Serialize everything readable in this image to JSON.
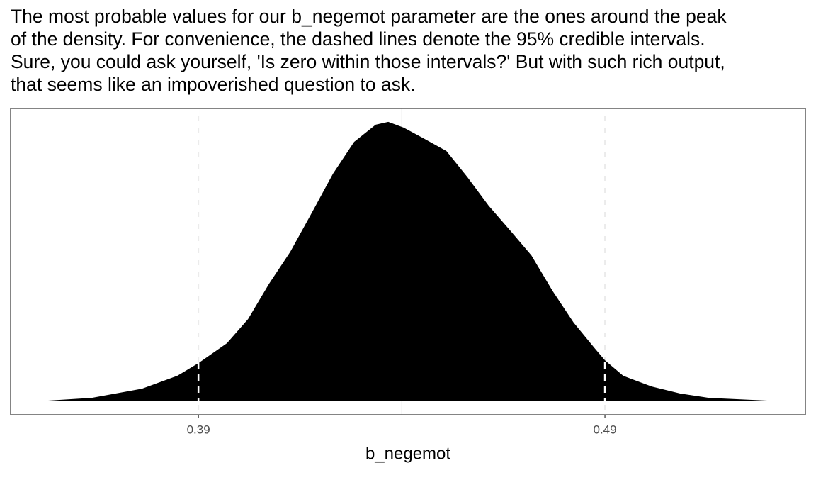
{
  "chart_data": {
    "type": "density",
    "title": [
      "The most probable values for our b_negemot parameter are the ones around the peak",
      "of the density. For convenience, the dashed lines denote the 95% credible intervals.",
      "Sure, you could ask yourself, 'Is zero within those intervals?' But with such rich output,",
      "that seems like an impoverished question to ask."
    ],
    "x_label": "b_negemot",
    "x": [
      0.3527,
      0.3639,
      0.3761,
      0.3848,
      0.39,
      0.397,
      0.4022,
      0.4074,
      0.4126,
      0.4179,
      0.4231,
      0.4283,
      0.4336,
      0.4367,
      0.4405,
      0.4457,
      0.451,
      0.4562,
      0.4614,
      0.4667,
      0.4719,
      0.4771,
      0.4823,
      0.4876,
      0.49,
      0.4945,
      0.5015,
      0.5085,
      0.5154,
      0.5304
    ],
    "y": [
      0,
      0.16,
      0.67,
      1.39,
      2.1,
      3.21,
      4.56,
      6.55,
      8.33,
      10.52,
      12.7,
      14.48,
      15.44,
      15.6,
      15.28,
      14.64,
      13.97,
      12.5,
      10.91,
      9.52,
      8.13,
      6.15,
      4.37,
      2.9,
      2.26,
      1.39,
      0.79,
      0.4,
      0.16,
      0
    ],
    "color": "#000000",
    "intervals": [
      0.39,
      0.49
    ],
    "interval_color": "#ffffff",
    "xlim": [
      0.3438,
      0.5393
    ],
    "ylim": [
      -0.79,
      16.35
    ],
    "xticks": [
      0.39,
      0.49
    ],
    "x_minor_grid": [
      0.44
    ],
    "grid": true
  }
}
